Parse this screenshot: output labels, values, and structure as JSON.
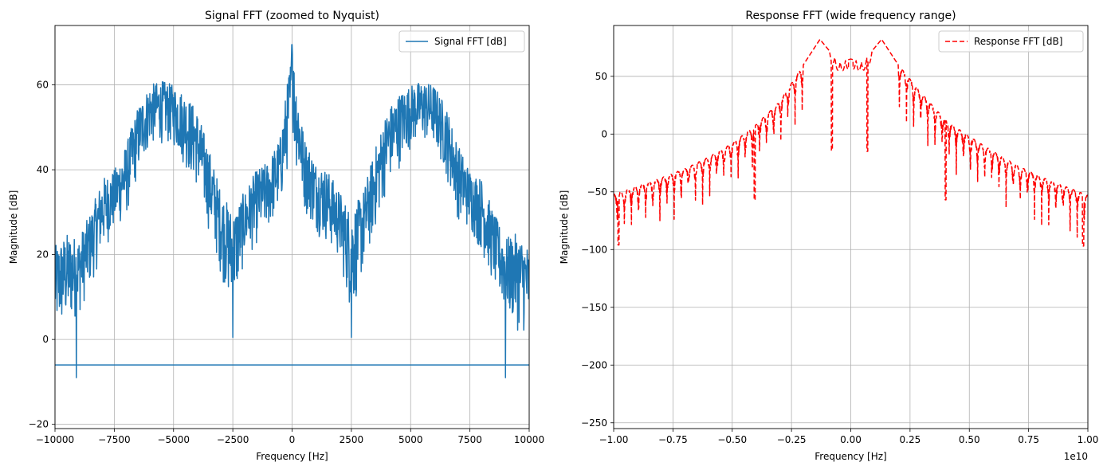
{
  "chart_data": [
    {
      "type": "line",
      "title": "Signal FFT (zoomed to Nyquist)",
      "xlabel": "Frequency [Hz]",
      "ylabel": "Magnitude [dB]",
      "xlim": [
        -10000,
        10000
      ],
      "ylim": [
        -21,
        74
      ],
      "x_ticks": [
        -10000,
        -7500,
        -5000,
        -2500,
        0,
        2500,
        5000,
        7500,
        10000
      ],
      "x_tick_labels": [
        "−10000",
        "−7500",
        "−5000",
        "−2500",
        "0",
        "2500",
        "5000",
        "7500",
        "10000"
      ],
      "y_ticks": [
        -20,
        0,
        20,
        40,
        60
      ],
      "y_tick_labels": [
        "−20",
        "0",
        "20",
        "40",
        "60"
      ],
      "grid": true,
      "legend_position": "top-right",
      "series": [
        {
          "name": "Signal FFT [dB]",
          "color": "#1f77b4",
          "style": "solid",
          "envelope": [
            {
              "x": -10000,
              "low": 0,
              "high": 22
            },
            {
              "x": -9500,
              "low": 2,
              "high": 25
            },
            {
              "x": -9000,
              "low": 5,
              "high": 24
            },
            {
              "x": -8500,
              "low": 12,
              "high": 30
            },
            {
              "x": -8000,
              "low": 20,
              "high": 38
            },
            {
              "x": -7500,
              "low": 25,
              "high": 40
            },
            {
              "x": -7000,
              "low": 28,
              "high": 46
            },
            {
              "x": -6500,
              "low": 38,
              "high": 55
            },
            {
              "x": -6000,
              "low": 45,
              "high": 60
            },
            {
              "x": -5500,
              "low": 46,
              "high": 61
            },
            {
              "x": -5000,
              "low": 45,
              "high": 60
            },
            {
              "x": -4500,
              "low": 40,
              "high": 58
            },
            {
              "x": -4000,
              "low": 35,
              "high": 54
            },
            {
              "x": -3500,
              "low": 25,
              "high": 45
            },
            {
              "x": -3000,
              "low": 15,
              "high": 35
            },
            {
              "x": -2500,
              "low": 5,
              "high": 30
            },
            {
              "x": -2000,
              "low": 18,
              "high": 35
            },
            {
              "x": -1500,
              "low": 22,
              "high": 40
            },
            {
              "x": -1000,
              "low": 25,
              "high": 42
            },
            {
              "x": -500,
              "low": 30,
              "high": 48
            },
            {
              "x": 0,
              "low": 45,
              "high": 69
            },
            {
              "x": 500,
              "low": 30,
              "high": 48
            },
            {
              "x": 1000,
              "low": 25,
              "high": 42
            },
            {
              "x": 1500,
              "low": 22,
              "high": 40
            },
            {
              "x": 2000,
              "low": 18,
              "high": 35
            },
            {
              "x": 2500,
              "low": 5,
              "high": 30
            },
            {
              "x": 3000,
              "low": 15,
              "high": 35
            },
            {
              "x": 3500,
              "low": 25,
              "high": 45
            },
            {
              "x": 4000,
              "low": 35,
              "high": 54
            },
            {
              "x": 4500,
              "low": 40,
              "high": 58
            },
            {
              "x": 5000,
              "low": 45,
              "high": 60
            },
            {
              "x": 5500,
              "low": 46,
              "high": 61
            },
            {
              "x": 6000,
              "low": 45,
              "high": 60
            },
            {
              "x": 6500,
              "low": 38,
              "high": 55
            },
            {
              "x": 7000,
              "low": 28,
              "high": 46
            },
            {
              "x": 7500,
              "low": 25,
              "high": 40
            },
            {
              "x": 8000,
              "low": 20,
              "high": 38
            },
            {
              "x": 8500,
              "low": 12,
              "high": 30
            },
            {
              "x": 9000,
              "low": 5,
              "high": 24
            },
            {
              "x": 9500,
              "low": 2,
              "high": 25
            },
            {
              "x": 10000,
              "low": 0,
              "high": 22
            }
          ],
          "baseline_db": -6,
          "notable_points": [
            {
              "x": 0,
              "y": 69.5
            },
            {
              "x": -9100,
              "y": -9
            },
            {
              "x": 9000,
              "y": -9
            },
            {
              "x": -2500,
              "y": 0.5
            },
            {
              "x": 2500,
              "y": 0.5
            }
          ]
        }
      ]
    },
    {
      "type": "line",
      "title": "Response FFT (wide frequency range)",
      "xlabel": "Frequency [Hz]",
      "ylabel": "Magnitude [dB]",
      "x_scale_label": "1e10",
      "xlim": [
        -1.0,
        1.0
      ],
      "ylim": [
        -255,
        94
      ],
      "x_ticks": [
        -1.0,
        -0.75,
        -0.5,
        -0.25,
        0.0,
        0.25,
        0.5,
        0.75,
        1.0
      ],
      "x_tick_labels": [
        "−1.00",
        "−0.75",
        "−0.50",
        "−0.25",
        "0.00",
        "0.25",
        "0.50",
        "0.75",
        "1.00"
      ],
      "y_ticks": [
        -250,
        -200,
        -150,
        -100,
        -50,
        0,
        50
      ],
      "y_tick_labels": [
        "−250",
        "−200",
        "−150",
        "−100",
        "−50",
        "0",
        "50"
      ],
      "grid": true,
      "legend_position": "top-right",
      "series": [
        {
          "name": "Response FFT [dB]",
          "color": "#ff0000",
          "style": "dashed",
          "main_lobe_centers": [
            -0.13,
            0.13
          ],
          "main_lobe_peak_db": 82,
          "central_level_db": 64,
          "envelope_points": [
            {
              "x": -1.0,
              "y": -52
            },
            {
              "x": -0.9,
              "y": -45
            },
            {
              "x": -0.8,
              "y": -38
            },
            {
              "x": -0.7,
              "y": -30
            },
            {
              "x": -0.6,
              "y": -20
            },
            {
              "x": -0.5,
              "y": -8
            },
            {
              "x": -0.4,
              "y": 8
            },
            {
              "x": -0.3,
              "y": 28
            },
            {
              "x": -0.2,
              "y": 60
            },
            {
              "x": -0.13,
              "y": 82
            },
            {
              "x": -0.05,
              "y": 62
            },
            {
              "x": 0.0,
              "y": 65
            },
            {
              "x": 0.05,
              "y": 62
            },
            {
              "x": 0.13,
              "y": 82
            },
            {
              "x": 0.2,
              "y": 60
            },
            {
              "x": 0.3,
              "y": 35
            },
            {
              "x": 0.4,
              "y": 12
            },
            {
              "x": 0.5,
              "y": -2
            },
            {
              "x": 0.6,
              "y": -15
            },
            {
              "x": 0.7,
              "y": -27
            },
            {
              "x": 0.8,
              "y": -37
            },
            {
              "x": 0.9,
              "y": -45
            },
            {
              "x": 1.0,
              "y": -53
            }
          ],
          "notable_nulls": [
            {
              "x": -0.98,
              "y": -96
            },
            {
              "x": -0.405,
              "y": -57
            },
            {
              "x": -0.08,
              "y": -14
            },
            {
              "x": 0.07,
              "y": -15
            },
            {
              "x": 0.4,
              "y": -57
            },
            {
              "x": 0.98,
              "y": -97
            }
          ]
        }
      ]
    }
  ]
}
